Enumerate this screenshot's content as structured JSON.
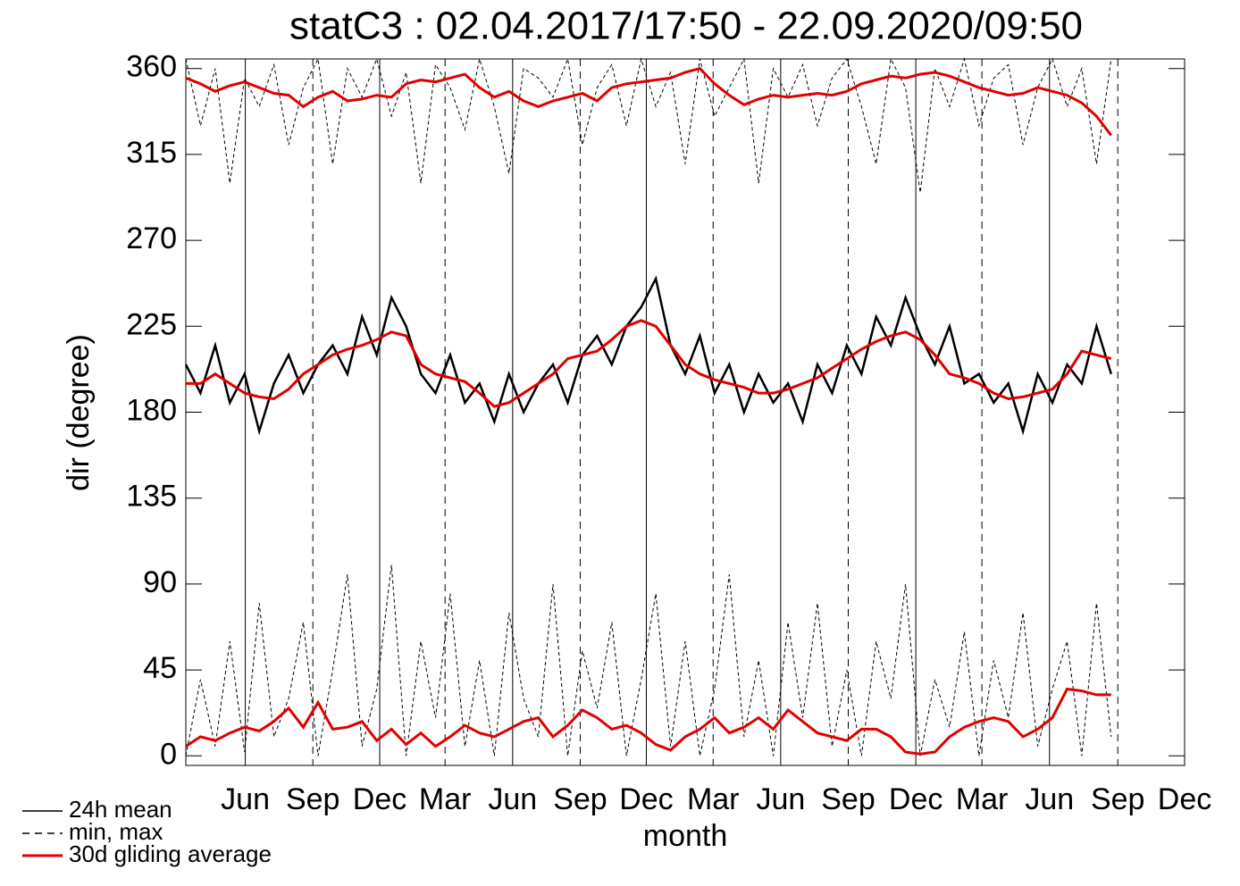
{
  "chart_data": {
    "type": "line",
    "title": "statC3 : 02.04.2017/17:50 - 22.09.2020/09:50",
    "x_label": "month",
    "y_label": "dir (degree)",
    "xlim": [
      0,
      1360
    ],
    "ylim": [
      -5,
      365
    ],
    "xticks": [
      {
        "value": 81,
        "label": "Jun"
      },
      {
        "value": 173,
        "label": "Sep"
      },
      {
        "value": 264,
        "label": "Dec"
      },
      {
        "value": 353,
        "label": "Mar"
      },
      {
        "value": 445,
        "label": "Jun"
      },
      {
        "value": 537,
        "label": "Sep"
      },
      {
        "value": 627,
        "label": "Dec"
      },
      {
        "value": 718,
        "label": "Mar"
      },
      {
        "value": 810,
        "label": "Jun"
      },
      {
        "value": 902,
        "label": "Sep"
      },
      {
        "value": 994,
        "label": "Dec"
      },
      {
        "value": 1084,
        "label": "Mar"
      },
      {
        "value": 1176,
        "label": "Jun"
      },
      {
        "value": 1269,
        "label": "Sep"
      },
      {
        "value": 1360,
        "label": "Dec"
      }
    ],
    "yticks": [
      0,
      45,
      90,
      135,
      180,
      225,
      270,
      315,
      360
    ],
    "x": [
      0,
      20,
      40,
      60,
      80,
      100,
      120,
      140,
      160,
      180,
      200,
      220,
      240,
      260,
      280,
      300,
      320,
      340,
      360,
      380,
      400,
      420,
      440,
      460,
      480,
      500,
      520,
      540,
      560,
      580,
      600,
      620,
      640,
      660,
      680,
      700,
      720,
      740,
      760,
      780,
      800,
      820,
      840,
      860,
      880,
      900,
      920,
      940,
      960,
      980,
      1000,
      1020,
      1040,
      1060,
      1080,
      1100,
      1120,
      1140,
      1160,
      1180,
      1200,
      1220,
      1240,
      1260
    ],
    "series": [
      {
        "name": "24h mean",
        "color": "#000000",
        "style": "solid",
        "values": [
          205,
          190,
          215,
          185,
          200,
          170,
          195,
          210,
          190,
          205,
          215,
          200,
          230,
          210,
          240,
          225,
          200,
          190,
          210,
          185,
          195,
          175,
          200,
          180,
          195,
          205,
          185,
          210,
          220,
          205,
          225,
          235,
          250,
          215,
          200,
          220,
          190,
          205,
          180,
          200,
          185,
          195,
          175,
          205,
          190,
          215,
          200,
          230,
          215,
          240,
          220,
          205,
          225,
          195,
          200,
          185,
          195,
          170,
          200,
          185,
          205,
          195,
          225,
          200
        ]
      },
      {
        "name": "min, max",
        "color": "#000000",
        "style": "dashed",
        "values": [
          365,
          330,
          360,
          300,
          355,
          340,
          362,
          320,
          350,
          365,
          310,
          360,
          345,
          365,
          335,
          358,
          300,
          362,
          350,
          328,
          365,
          340,
          305,
          360,
          355,
          345,
          365,
          320,
          350,
          362,
          330,
          365,
          340,
          358,
          310,
          365,
          335,
          350,
          365,
          300,
          360,
          345,
          362,
          330,
          355,
          365,
          340,
          310,
          365,
          350,
          295,
          360,
          340,
          365,
          330,
          355,
          362,
          320,
          350,
          365,
          340,
          360,
          310,
          365
        ],
        "min_values": [
          0,
          40,
          5,
          60,
          2,
          80,
          10,
          30,
          70,
          0,
          45,
          95,
          5,
          35,
          100,
          0,
          60,
          20,
          85,
          5,
          50,
          0,
          75,
          30,
          10,
          90,
          0,
          55,
          25,
          70,
          0,
          40,
          85,
          5,
          60,
          0,
          35,
          95,
          10,
          50,
          0,
          70,
          20,
          80,
          5,
          45,
          0,
          60,
          30,
          90,
          0,
          40,
          15,
          65,
          0,
          50,
          20,
          75,
          5,
          35,
          60,
          0,
          80,
          10
        ]
      },
      {
        "name": "30d gliding average",
        "color": "#e00000",
        "style": "solid",
        "values": [
          195,
          195,
          200,
          195,
          190,
          188,
          187,
          192,
          200,
          205,
          210,
          213,
          215,
          218,
          222,
          220,
          205,
          200,
          198,
          196,
          190,
          183,
          185,
          190,
          195,
          200,
          208,
          210,
          212,
          218,
          225,
          228,
          225,
          215,
          205,
          200,
          197,
          195,
          193,
          190,
          190,
          192,
          195,
          198,
          203,
          208,
          213,
          217,
          220,
          222,
          218,
          210,
          200,
          198,
          195,
          190,
          187,
          188,
          190,
          192,
          200,
          212,
          210,
          208
        ],
        "max_values": [
          355,
          352,
          348,
          351,
          353,
          350,
          347,
          346,
          340,
          345,
          348,
          343,
          344,
          346,
          345,
          352,
          354,
          353,
          355,
          357,
          350,
          345,
          348,
          343,
          340,
          343,
          345,
          347,
          343,
          350,
          352,
          353,
          354,
          355,
          358,
          360,
          352,
          346,
          341,
          344,
          346,
          345,
          346,
          347,
          346,
          348,
          352,
          354,
          356,
          355,
          357,
          358,
          356,
          353,
          350,
          348,
          346,
          347,
          350,
          348,
          346,
          342,
          335,
          325
        ],
        "min_values": [
          5,
          10,
          8,
          12,
          15,
          13,
          18,
          25,
          15,
          28,
          14,
          15,
          18,
          8,
          14,
          6,
          12,
          5,
          10,
          16,
          12,
          10,
          14,
          18,
          20,
          10,
          16,
          24,
          20,
          14,
          16,
          12,
          6,
          3,
          10,
          14,
          20,
          12,
          15,
          20,
          14,
          24,
          18,
          12,
          10,
          8,
          14,
          14,
          10,
          2,
          1,
          2,
          10,
          15,
          18,
          20,
          18,
          10,
          14,
          20,
          35,
          34,
          32,
          32
        ]
      }
    ]
  }
}
